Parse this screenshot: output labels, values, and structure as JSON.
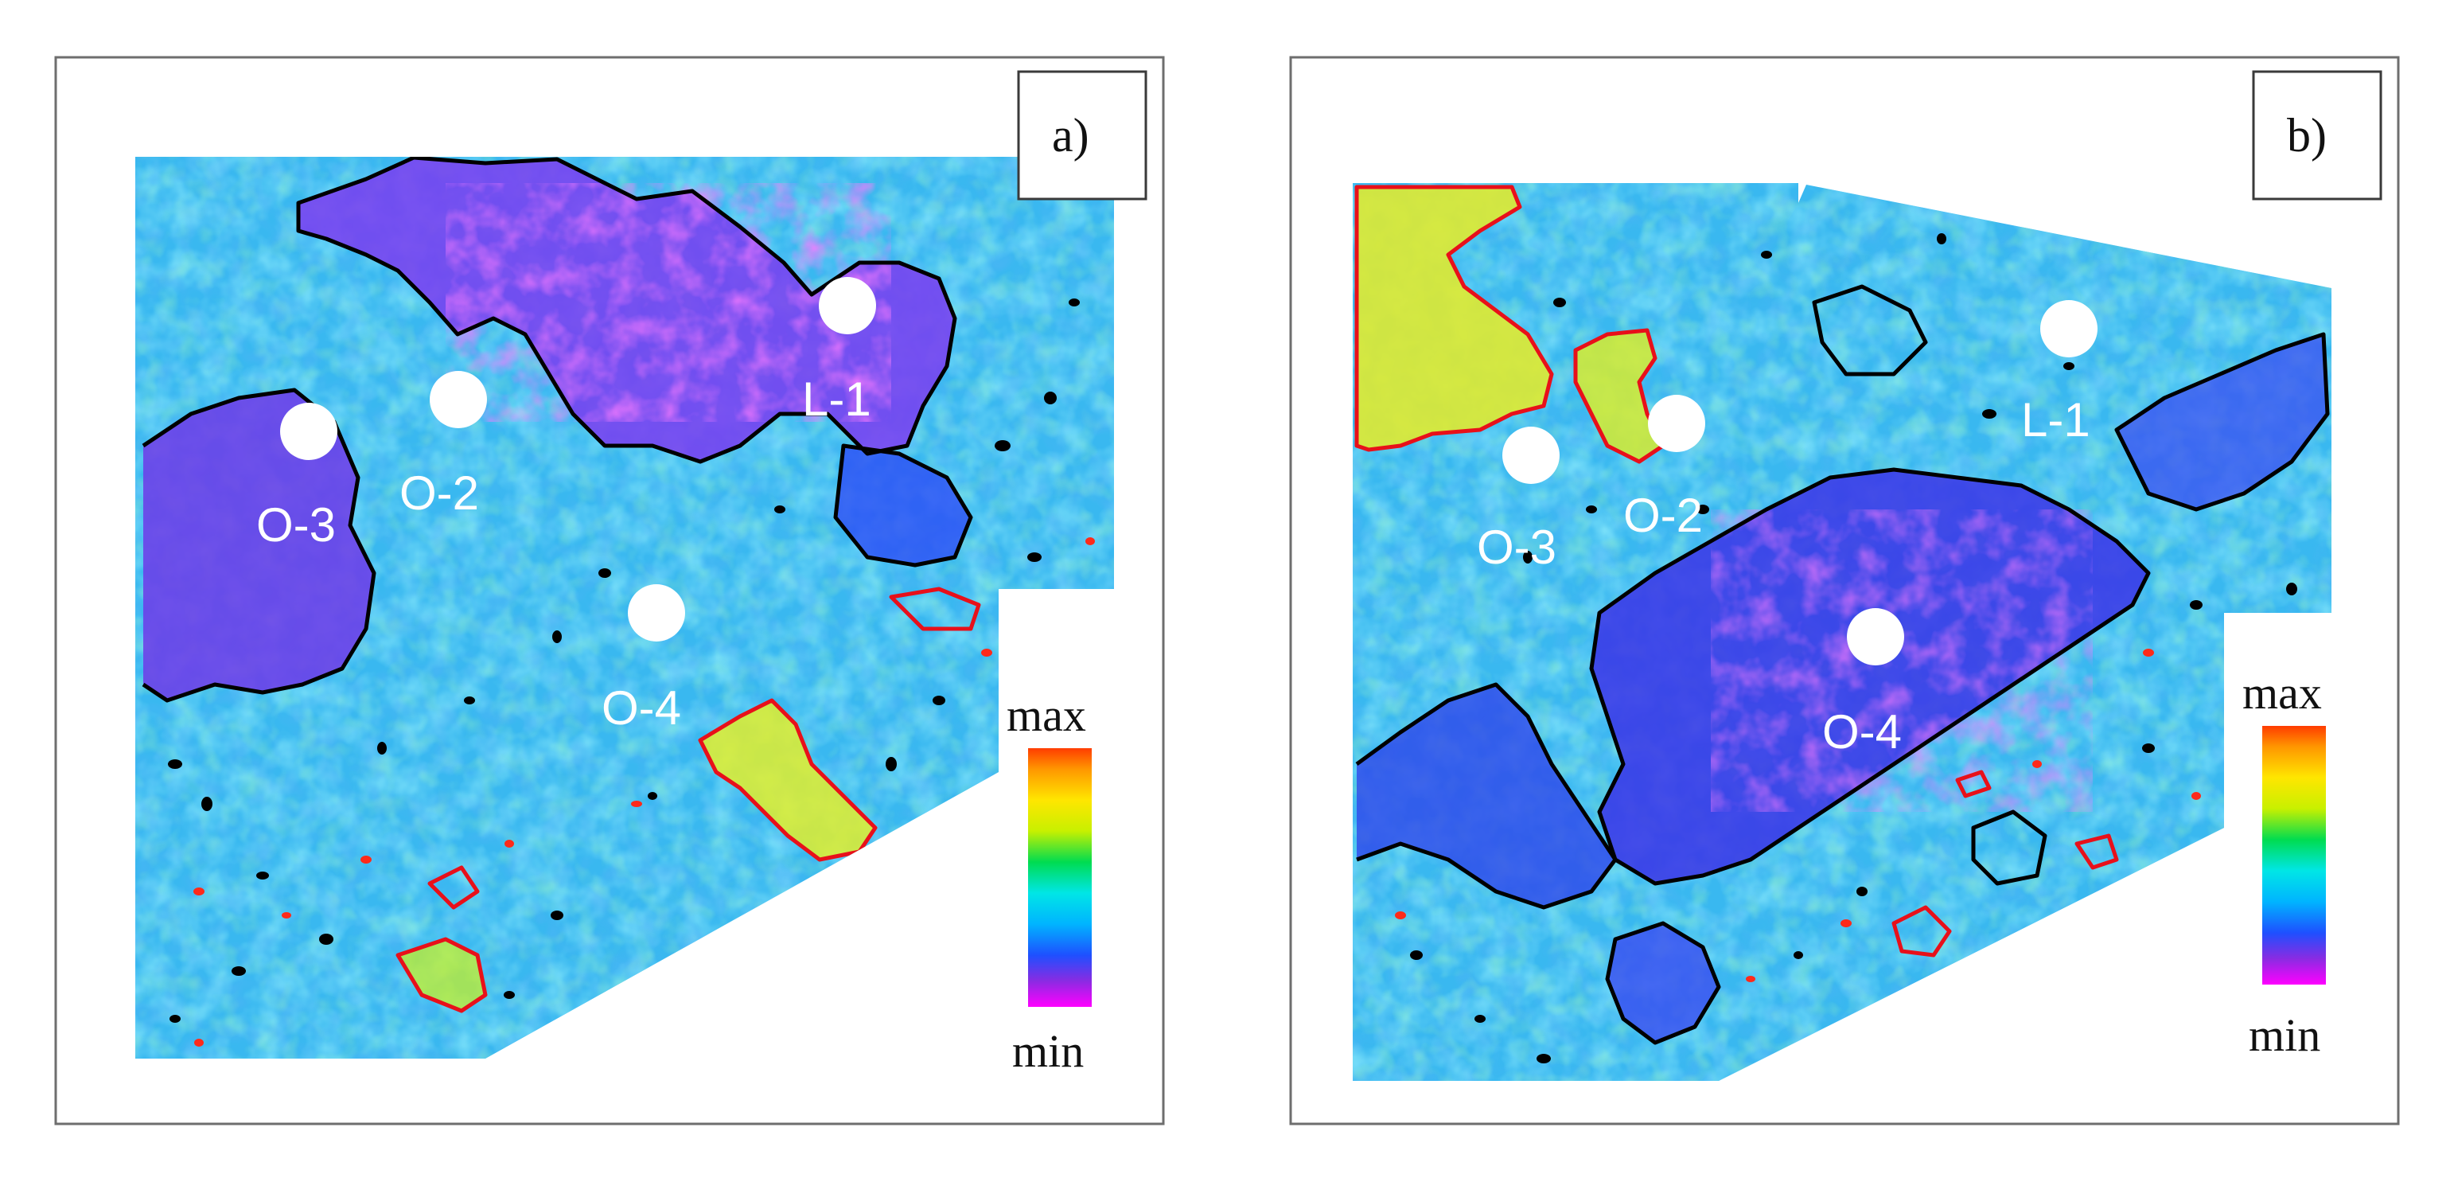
{
  "figure": {
    "colormap": [
      "#ff00ff",
      "#8a2be2",
      "#1e50ff",
      "#00b4ff",
      "#00e6e6",
      "#00dc50",
      "#c8f000",
      "#ffe600",
      "#ff9600",
      "#ff3c00"
    ],
    "base_field_color": "#39b8f0",
    "low_contour_color": "#000000",
    "high_contour_color": "#e8101a",
    "well_marker_color": "#ffffff"
  },
  "panels": [
    {
      "tag": "a)",
      "scale": {
        "max_label": "max",
        "min_label": "min"
      },
      "wells": [
        {
          "name": "L-1"
        },
        {
          "name": "O-2"
        },
        {
          "name": "O-3"
        },
        {
          "name": "O-4"
        }
      ]
    },
    {
      "tag": "b)",
      "scale": {
        "max_label": "max",
        "min_label": "min"
      },
      "wells": [
        {
          "name": "L-1"
        },
        {
          "name": "O-2"
        },
        {
          "name": "O-3"
        },
        {
          "name": "O-4"
        }
      ]
    }
  ]
}
